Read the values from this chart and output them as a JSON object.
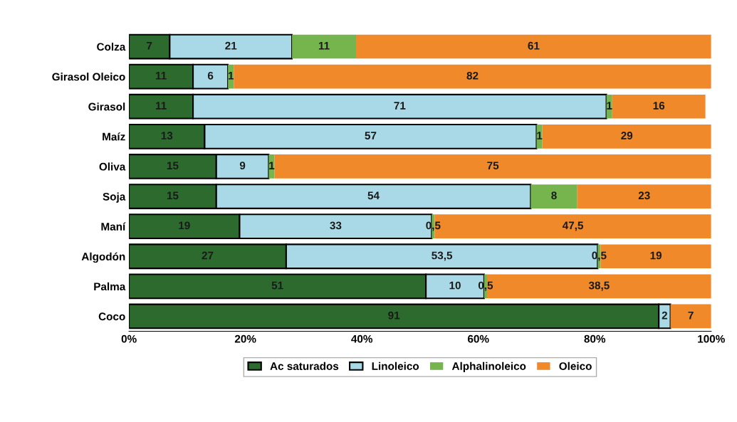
{
  "chart_data": {
    "type": "bar",
    "orientation": "horizontal",
    "stacked": true,
    "categories": [
      "Colza",
      "Girasol Oleico",
      "Girasol",
      "Maíz",
      "Oliva",
      "Soja",
      "Maní",
      "Algodón",
      "Palma",
      "Coco"
    ],
    "series": [
      {
        "name": "Ac saturados",
        "color": "#2d6a2d",
        "values": [
          7,
          11,
          11,
          13,
          15,
          15,
          19,
          27,
          51,
          91
        ],
        "value_labels": [
          "7",
          "11",
          "11",
          "13",
          "15",
          "15",
          "19",
          "27",
          "51",
          "91"
        ]
      },
      {
        "name": "Linoleico",
        "color": "#a9d9e6",
        "values": [
          21,
          6,
          71,
          57,
          9,
          54,
          33,
          53.5,
          10,
          2
        ],
        "value_labels": [
          "21",
          "6",
          "71",
          "57",
          "9",
          "54",
          "33",
          "53,5",
          "10",
          "2"
        ]
      },
      {
        "name": "Alphalinoleico",
        "color": "#76b54e",
        "values": [
          11,
          1,
          1,
          1,
          1,
          8,
          0.5,
          0.5,
          0.5,
          0
        ],
        "value_labels": [
          "11",
          "1",
          "1",
          "1",
          "1",
          "8",
          "0,5",
          "0,5",
          "0,5",
          null
        ]
      },
      {
        "name": "Oleico",
        "color": "#f0892a",
        "values": [
          61,
          82,
          16,
          29,
          75,
          23,
          47.5,
          19,
          38.5,
          7
        ],
        "value_labels": [
          "61",
          "82",
          "16",
          "29",
          "75",
          "23",
          "47,5",
          "19",
          "38,5",
          "7"
        ]
      }
    ],
    "xlim": [
      0,
      100
    ],
    "xticks": [
      {
        "value": 0,
        "label": "0%"
      },
      {
        "value": 20,
        "label": "20%"
      },
      {
        "value": 40,
        "label": "40%"
      },
      {
        "value": 60,
        "label": "60%"
      },
      {
        "value": 80,
        "label": "80%"
      },
      {
        "value": 100,
        "label": "100%"
      }
    ],
    "grid": false,
    "legend": "bottom"
  }
}
